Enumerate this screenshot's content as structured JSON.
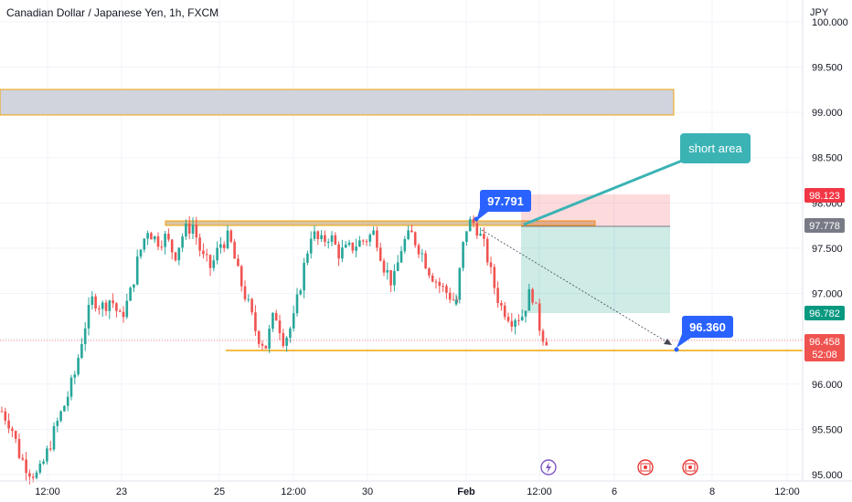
{
  "header": {
    "title": "Canadian Dollar / Japanese Yen, 1h, FXCM"
  },
  "chart_data": {
    "type": "candlestick",
    "title": "Canadian Dollar / Japanese Yen, 1h, FXCM",
    "currency": "JPY",
    "ylim": [
      94.93,
      100.24
    ],
    "y_ticks": [
      "100.000",
      "99.500",
      "99.000",
      "98.500",
      "98.000",
      "97.500",
      "97.000",
      "96.500",
      "96.000",
      "95.500",
      "95.000"
    ],
    "x_ticks": [
      "12:00",
      "23",
      "25",
      "12:00",
      "30",
      "Feb",
      "12:00",
      "6",
      "8",
      "12:00"
    ],
    "grid": true,
    "colors": {
      "up": "#26a69a",
      "down": "#ef5350",
      "level": "#f0a30a",
      "callout": "#2962ff",
      "note": "#3bb3b5",
      "tag_last": "#ef5350",
      "tag_stop": "#f23645",
      "tag_entry": "#787b86",
      "tag_target": "#089981"
    },
    "price_series": [
      [
        95.7,
        95.55,
        95.2,
        95.05,
        94.98,
        95.25,
        95.55,
        95.8,
        96.1,
        96.6,
        96.95,
        96.85,
        96.95,
        96.72,
        96.95,
        97.4,
        97.72,
        97.58,
        97.62,
        97.42,
        97.68,
        97.76,
        97.4,
        97.28,
        97.55,
        97.62,
        97.2,
        96.9,
        96.55,
        96.42,
        96.8,
        96.48,
        96.68,
        97.2,
        97.68,
        97.55,
        97.65,
        97.45,
        97.48,
        97.55,
        97.6,
        97.68,
        97.3,
        97.1,
        97.55,
        97.65,
        97.48,
        97.25,
        97.1,
        97.0,
        96.9
      ],
      [
        96.88,
        97.4,
        97.72,
        97.8,
        97.75,
        97.6,
        97.45,
        97.2,
        97.0,
        96.85,
        96.8,
        96.72,
        96.76,
        96.74,
        96.9,
        97.05,
        96.78,
        96.55,
        96.5
      ]
    ]
  },
  "callouts": {
    "peak": "97.791",
    "target": "96.360",
    "note": "short area"
  },
  "price_tags": {
    "stop": "98.123",
    "entry": "97.778",
    "target": "96.782",
    "last": "96.458",
    "countdown": "52:08"
  },
  "events": [
    "lightning-icon",
    "canada-flag-icon",
    "canada-flag-icon"
  ]
}
